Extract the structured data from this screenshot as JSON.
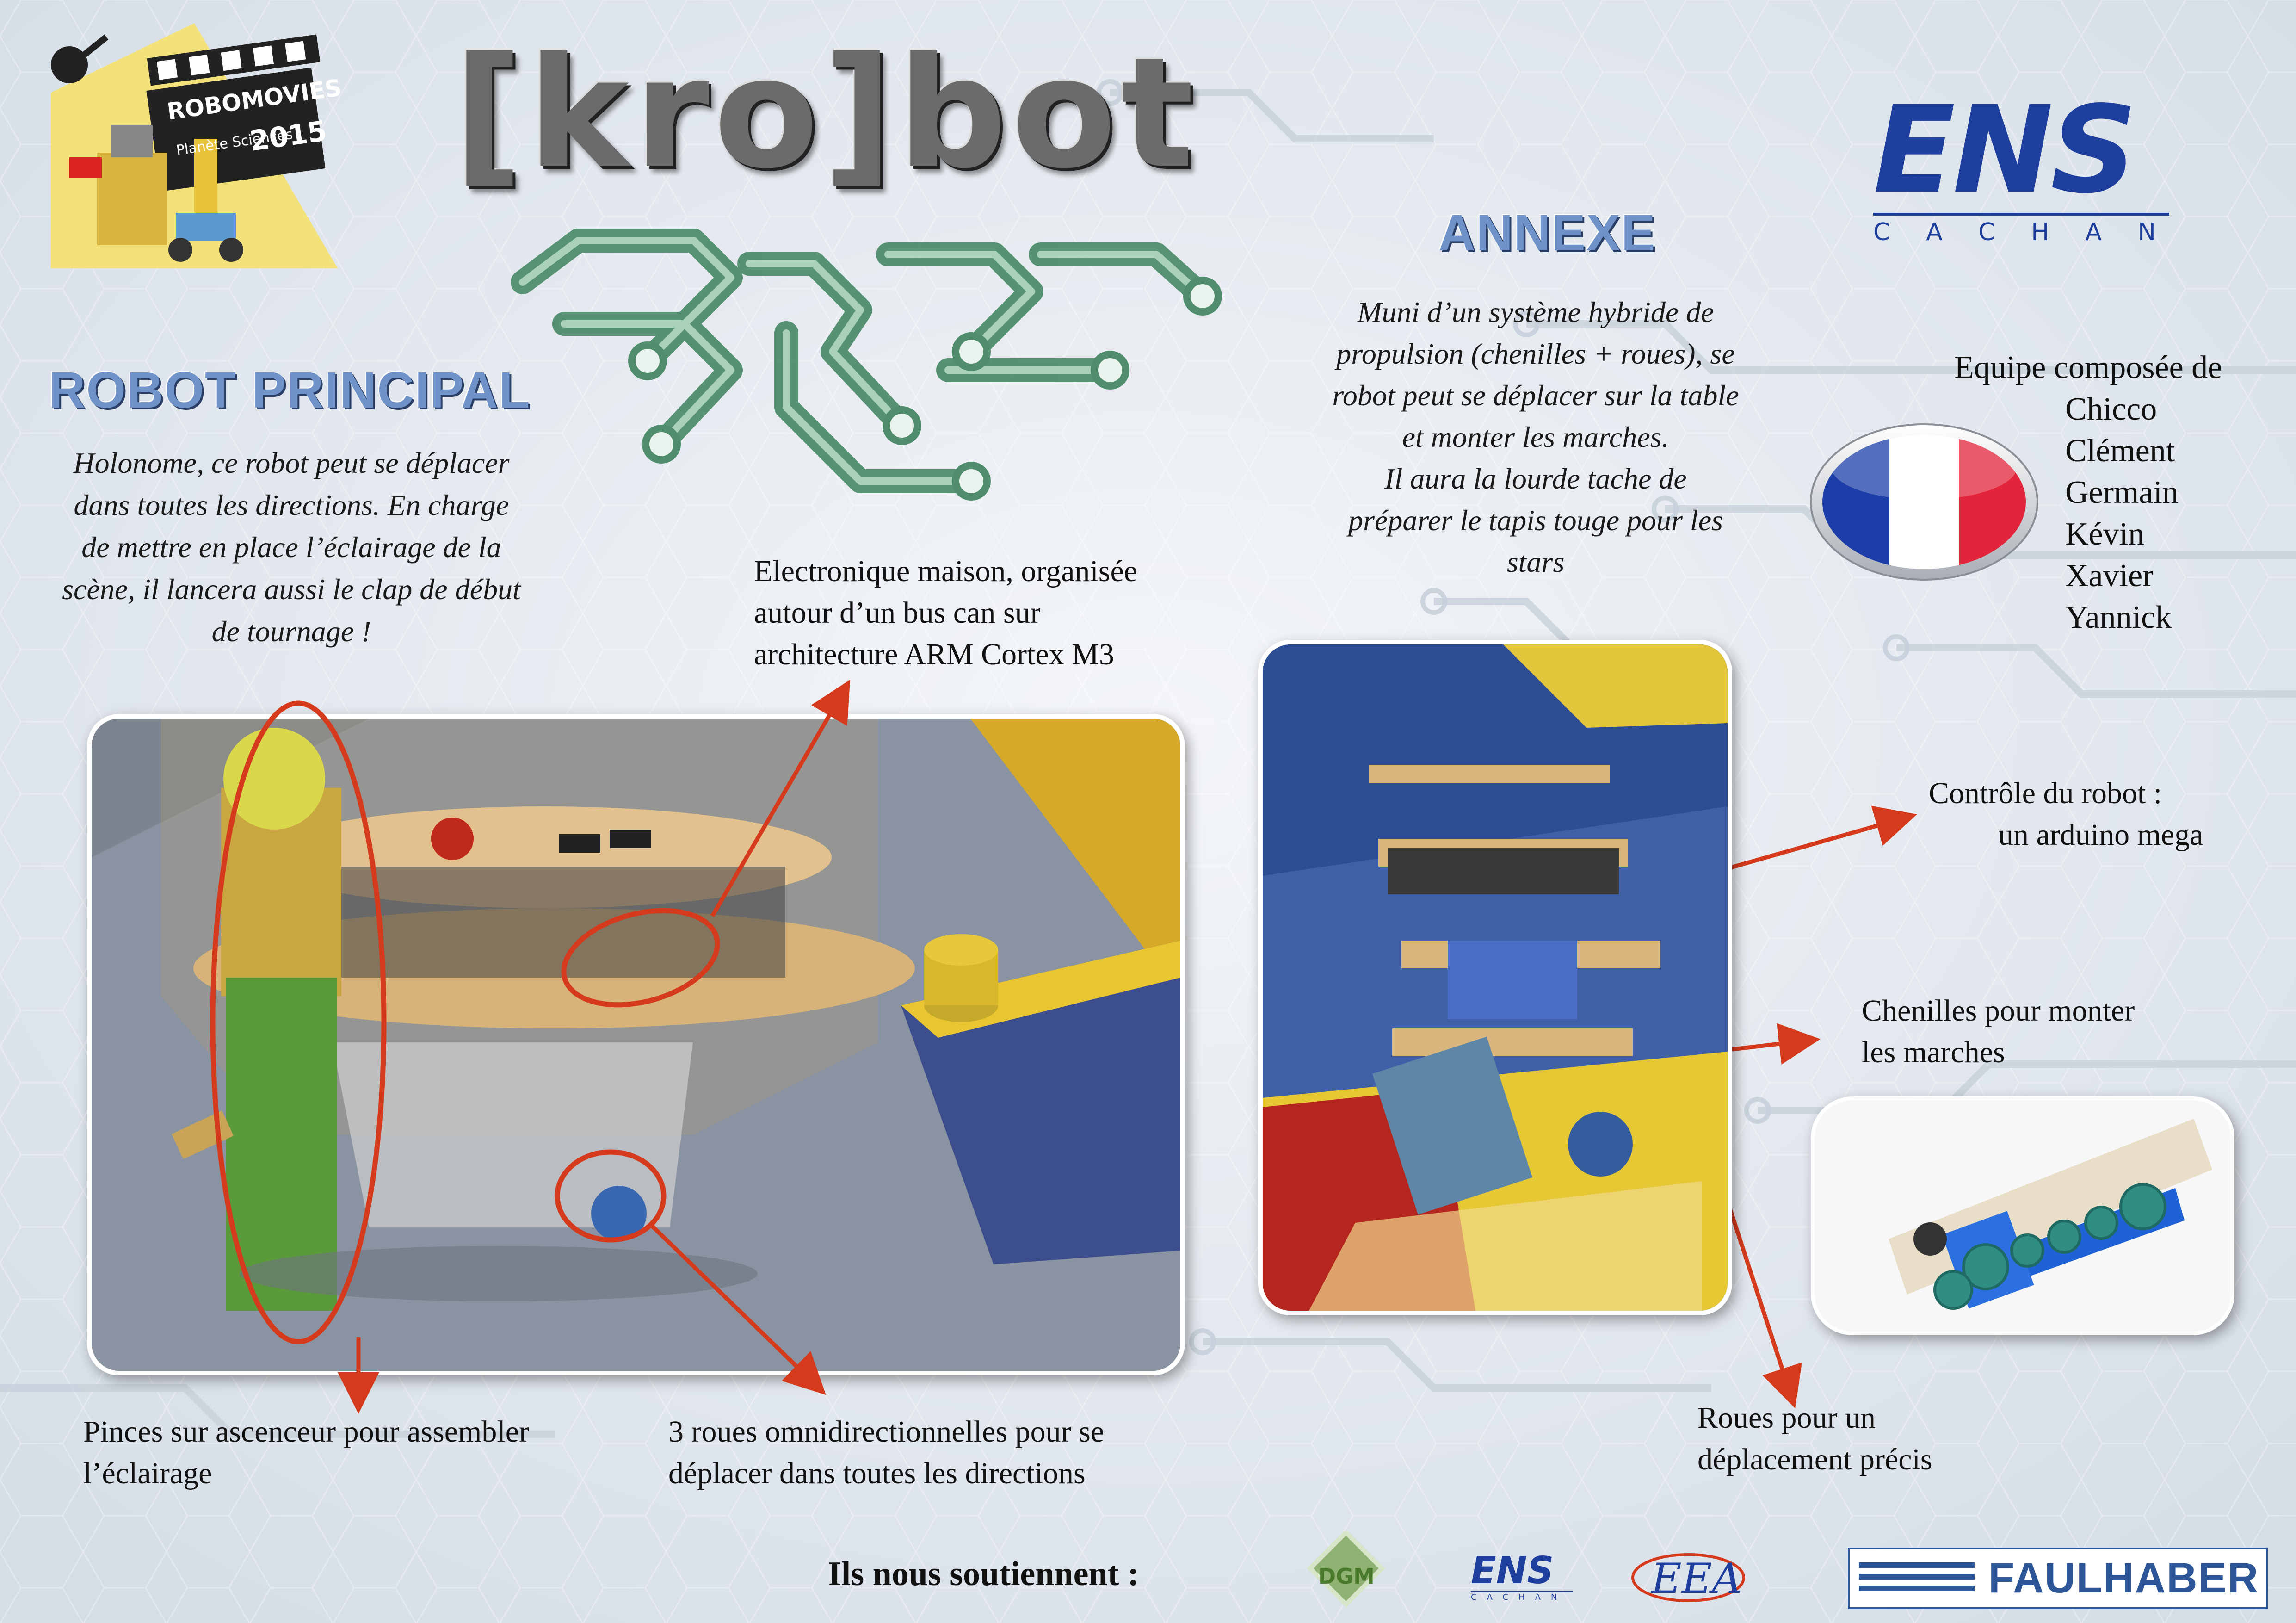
{
  "header": {
    "logo_text": "[kro]bot",
    "event_badge_line1": "ROBOMOVIES",
    "event_badge_line2": "Planète Sciences",
    "event_badge_year": "2015",
    "school_logo": "ENS",
    "school_sub": "CACHAN"
  },
  "robot_principal": {
    "title": "ROBOT PRINCIPAL",
    "description_lines": [
      "Holonome, ce robot peut se déplacer",
      "dans toutes les directions. En charge",
      "de mettre en place l’éclairage de la",
      "scène, il lancera aussi le clap de début",
      "de tournage !"
    ],
    "callout_electronics": [
      "Electronique maison, organisée",
      "autour d’un bus can sur",
      "architecture ARM Cortex M3"
    ],
    "callout_pinces": [
      "Pinces sur ascenceur pour assembler",
      "l’éclairage"
    ],
    "callout_roues": [
      "3 roues omnidirectionnelles pour se",
      "déplacer dans toutes les directions"
    ]
  },
  "annexe": {
    "title": "ANNEXE",
    "description_lines": [
      "Muni d’un système hybride de",
      "propulsion (chenilles + roues), se",
      "robot peut se déplacer sur la table",
      "et monter les marches.",
      "Il aura la lourde tache de",
      "préparer le tapis touge pour les",
      "stars"
    ],
    "callout_control": [
      "Contrôle du robot :",
      "un arduino mega"
    ],
    "callout_chenilles": [
      "Chenilles pour monter",
      "les marches"
    ],
    "callout_roues": [
      "Roues pour un",
      "déplacement précis"
    ]
  },
  "team": {
    "heading": "Equipe composée de",
    "members": [
      "Chicco",
      "Clément",
      "Germain",
      "Kévin",
      "Xavier",
      "Yannick"
    ]
  },
  "footer": {
    "sponsors_label": "Ils nous soutiennent :",
    "sponsor_dgm": "DGM",
    "sponsor_ens": "ENS",
    "sponsor_ens_sub": "CACHAN",
    "sponsor_eea": "EEA",
    "sponsor_faulhaber": "FAULHABER"
  },
  "colors": {
    "accent_red": "#d63a1c",
    "title_blue": "#6f93c9",
    "ens_blue": "#1f3f9e",
    "circuit_green": "#4f8d6d"
  }
}
